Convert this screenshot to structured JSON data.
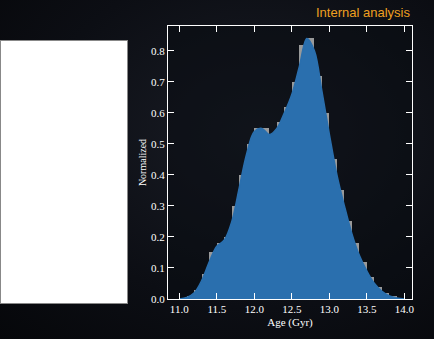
{
  "chart_data": {
    "type": "histogram",
    "annotation": "Internal analysis",
    "x_label": "Age (Gyr)",
    "y_label": "Normalized",
    "bins": [
      11.1,
      11.2,
      11.3,
      11.4,
      11.5,
      11.6,
      11.7,
      11.8,
      11.9,
      12.0,
      12.1,
      12.2,
      12.3,
      12.4,
      12.5,
      12.6,
      12.7,
      12.8,
      12.9,
      13.0,
      13.1,
      13.2,
      13.3,
      13.4,
      13.5,
      13.6,
      13.7,
      13.8,
      13.9
    ],
    "counts": [
      0.01,
      0.03,
      0.08,
      0.15,
      0.18,
      0.2,
      0.3,
      0.4,
      0.5,
      0.55,
      0.55,
      0.52,
      0.57,
      0.62,
      0.7,
      0.82,
      0.84,
      0.72,
      0.6,
      0.45,
      0.35,
      0.25,
      0.18,
      0.12,
      0.07,
      0.04,
      0.02,
      0.01
    ],
    "color": "#a9a9a9",
    "curve": {
      "x": [
        11.0,
        11.1,
        11.2,
        11.3,
        11.4,
        11.5,
        11.6,
        11.7,
        11.8,
        11.9,
        12.0,
        12.1,
        12.2,
        12.3,
        12.4,
        12.5,
        12.6,
        12.7,
        12.8,
        12.9,
        13.0,
        13.1,
        13.2,
        13.3,
        13.4,
        13.5,
        13.6,
        13.7,
        13.8,
        13.9,
        14.0
      ],
      "values": [
        0.0,
        0.005,
        0.02,
        0.06,
        0.12,
        0.17,
        0.19,
        0.25,
        0.36,
        0.47,
        0.54,
        0.55,
        0.53,
        0.55,
        0.6,
        0.66,
        0.75,
        0.84,
        0.8,
        0.67,
        0.53,
        0.4,
        0.3,
        0.21,
        0.14,
        0.09,
        0.05,
        0.025,
        0.01,
        0.003,
        0.0
      ],
      "color": "#2a6fae"
    },
    "annotation_color": "#f0a020",
    "xlim": [
      10.85,
      14.1
    ],
    "xticks": [
      {
        "value": 11,
        "label": "11.0"
      },
      11.5,
      {
        "value": 12,
        "label": "12.0"
      },
      12.5,
      {
        "value": 13,
        "label": "13.0"
      },
      13.5,
      {
        "value": 14,
        "label": "14.0"
      }
    ],
    "ylim": [
      0,
      0.88
    ],
    "yticks": [
      {
        "value": 0,
        "label": "0.0"
      },
      0.1,
      0.2,
      0.3,
      0.4,
      0.5,
      0.6,
      0.7,
      0.8
    ],
    "grid": false
  }
}
